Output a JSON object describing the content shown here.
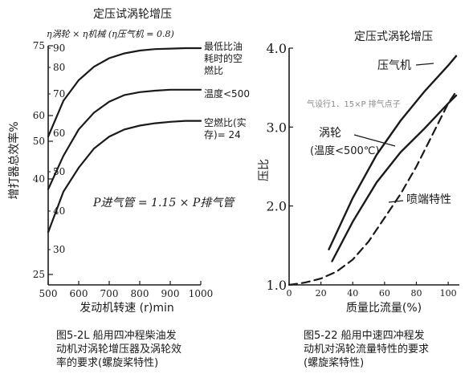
{
  "chart_data": [
    {
      "type": "line",
      "title": "定压试涡轮增压",
      "subtitle": "η涡轮 × η机械 (η压气机 = 0.8)",
      "xlabel": "发动机转速 (r)min",
      "ylabel": "增打器总效率%",
      "xlim": [
        500,
        1000
      ],
      "ylim": [
        25,
        75
      ],
      "x_ticks": [
        "500",
        "600",
        "700",
        "800",
        "900",
        "1000"
      ],
      "y_ticks_left": [
        "25",
        "40",
        "50",
        "60",
        "75"
      ],
      "y_ticks_inner": [
        "30",
        "40",
        "50",
        "60",
        "70",
        "80",
        "90"
      ],
      "annotation": "P进气管 = 1.15 × P排气管",
      "series": [
        {
          "name": "最低比油耗时的空燃比",
          "x": [
            500,
            550,
            600,
            650,
            700,
            750,
            800,
            850,
            900,
            950,
            1000
          ],
          "values": [
            56.0,
            63.5,
            67.8,
            70.6,
            72.4,
            73.4,
            74.0,
            74.3,
            74.4,
            74.5,
            74.5
          ]
        },
        {
          "name": "温度 < 500",
          "x": [
            500,
            550,
            600,
            650,
            700,
            750,
            800,
            850,
            900,
            950,
            1000
          ],
          "values": [
            45.0,
            52.0,
            57.5,
            61.0,
            63.3,
            64.7,
            65.3,
            65.6,
            65.8,
            65.8,
            65.8
          ]
        },
        {
          "name": "空燃比(实存) = 24",
          "x": [
            500,
            550,
            600,
            650,
            700,
            750,
            800,
            850,
            900,
            950,
            1000
          ],
          "values": [
            36.0,
            44.5,
            49.5,
            53.5,
            56.0,
            57.5,
            58.3,
            58.8,
            59.1,
            59.3,
            59.3
          ]
        }
      ]
    },
    {
      "type": "line",
      "title": "定压式涡轮增压",
      "xlabel": "质量比流量(%)",
      "ylabel": "压比",
      "xlim": [
        0,
        105
      ],
      "ylim": [
        1.0,
        4.0
      ],
      "x_ticks": [
        "0",
        "20",
        "40",
        "60",
        "80",
        "100"
      ],
      "y_ticks": [
        "1.0",
        "2.0",
        "3.0",
        "4.0"
      ],
      "annotation": "气设行1．15×P 排气点子",
      "series": [
        {
          "name": "压气机",
          "x": [
            25,
            40,
            55,
            70,
            85,
            100,
            105
          ],
          "values": [
            1.45,
            2.1,
            2.65,
            3.08,
            3.45,
            3.78,
            3.9
          ]
        },
        {
          "name": "涡轮 (温度<500℃)",
          "x": [
            27,
            40,
            55,
            70,
            85,
            100,
            105
          ],
          "values": [
            1.3,
            1.8,
            2.3,
            2.68,
            2.98,
            3.3,
            3.4
          ]
        },
        {
          "name": "喷端特性",
          "x": [
            0,
            10,
            20,
            30,
            40,
            50,
            60,
            70,
            80,
            90,
            100,
            105
          ],
          "values": [
            1.0,
            1.03,
            1.08,
            1.17,
            1.32,
            1.55,
            1.85,
            2.15,
            2.5,
            2.9,
            3.3,
            3.45
          ]
        }
      ]
    }
  ],
  "captions": {
    "left": "图5-2L  船用四冲程柴油发\n动机对涡轮增压器及涡轮效\n率的要求(螺旋桨特性)",
    "right": "图5-22  船用中速四冲程发\n动机对涡轮流量特性的要求\n(螺旋桨特性)"
  },
  "labels": {
    "left_s1": [
      "最低比油",
      "耗时的空",
      "燃比"
    ],
    "left_s2": "温度<500",
    "left_s3": [
      "空燃比(实",
      "存)= 24"
    ],
    "right_s1": "压气机",
    "right_s2": "涡轮",
    "right_s2_sub": "(温度<500℃)",
    "right_s3": "喷端特性"
  },
  "colors": {
    "ink": "#1a1a1a",
    "background": "#ffffff",
    "note": "#8a8a8a"
  }
}
